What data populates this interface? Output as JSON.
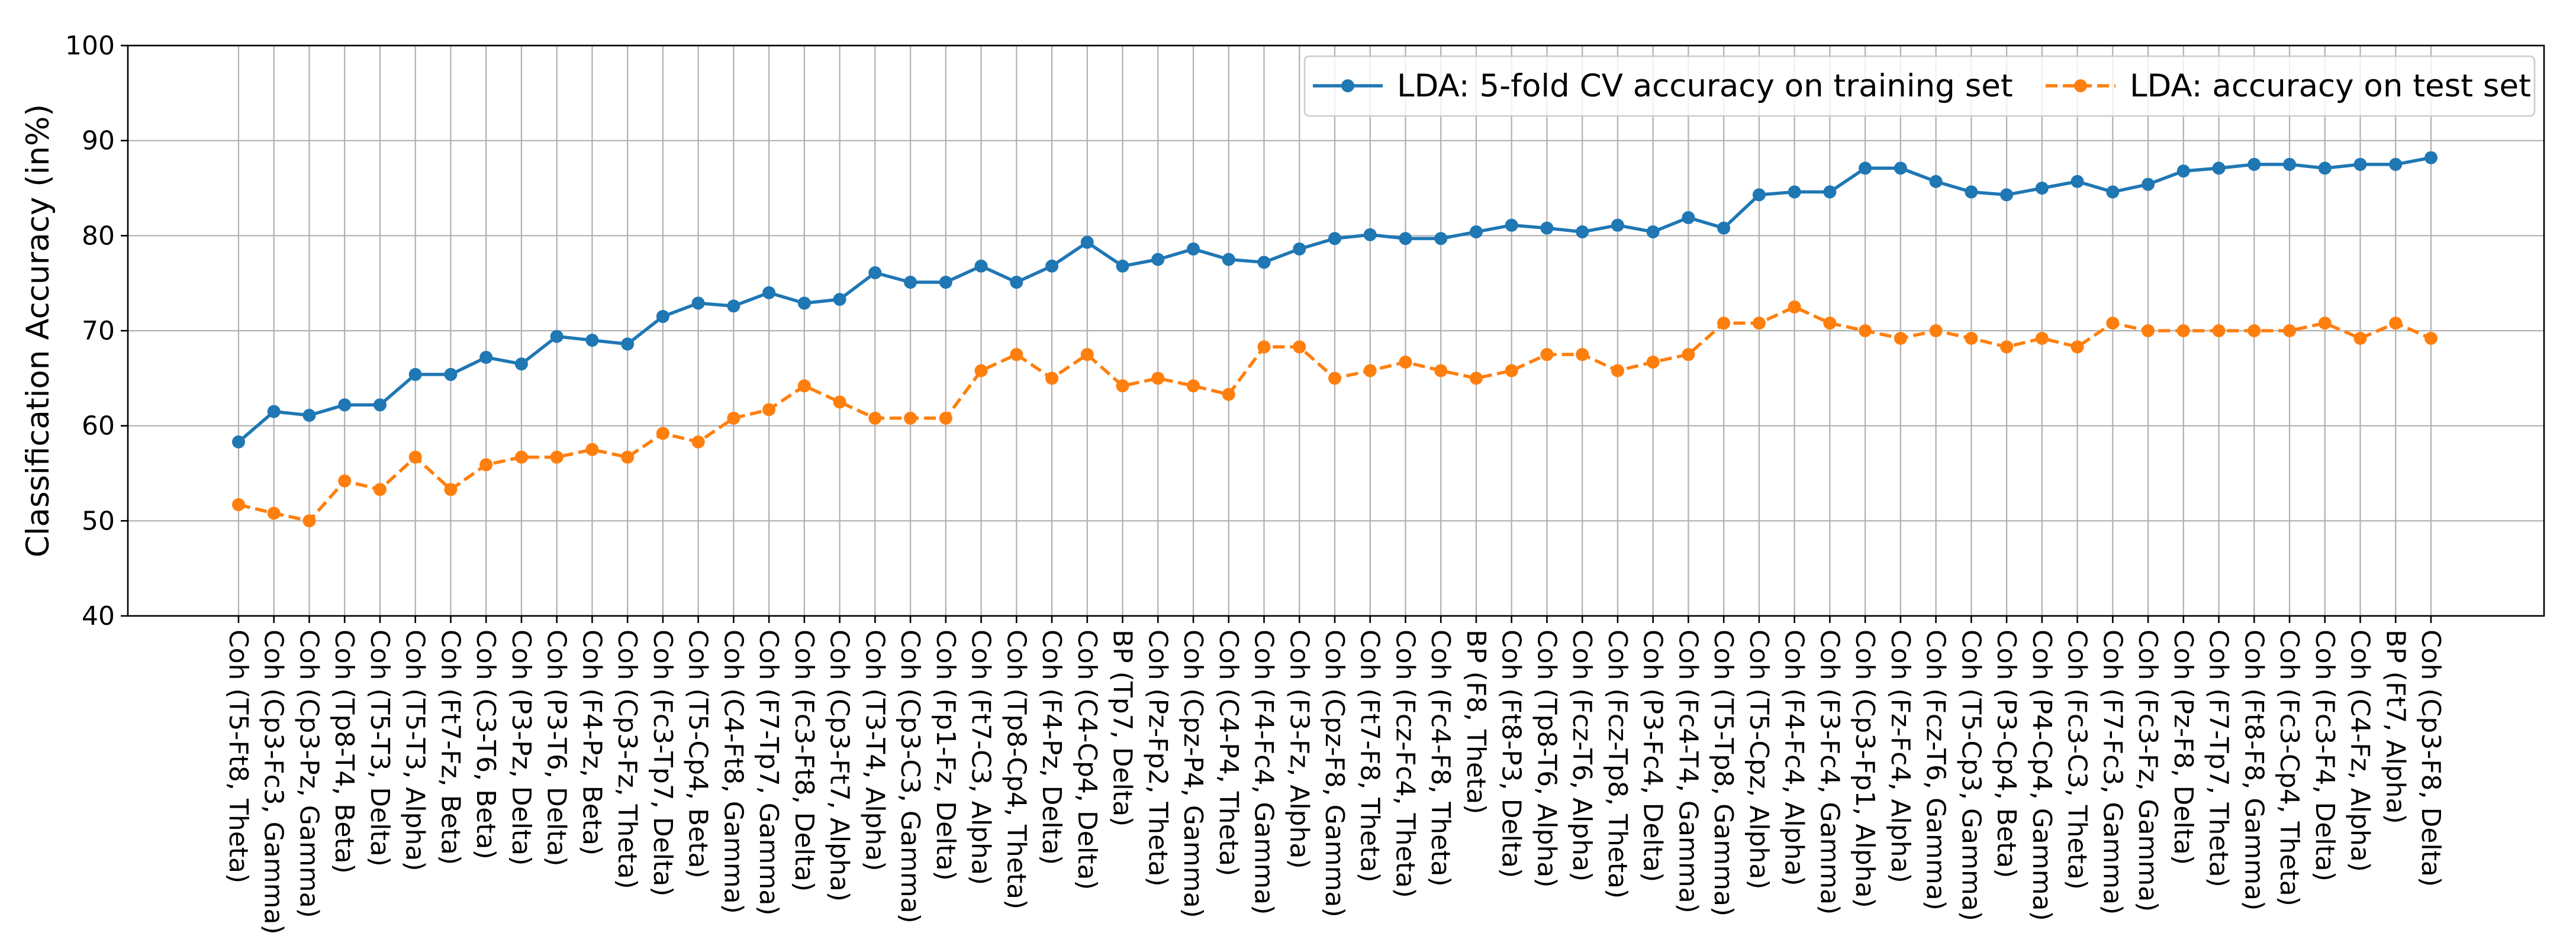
{
  "chart_data": {
    "type": "line",
    "ylabel": "Classification Accuracy (in%)",
    "xlabel": "",
    "ylim": [
      40,
      100
    ],
    "yticks": [
      40,
      50,
      60,
      70,
      80,
      90,
      100
    ],
    "grid": true,
    "legend_position": "top-right",
    "categories": [
      "Coh (T5-Ft8, Theta)",
      "Coh (Cp3-Fc3, Gamma)",
      "Coh (Cp3-Pz, Gamma)",
      "Coh (Tp8-T4, Beta)",
      "Coh (T5-T3, Delta)",
      "Coh (T5-T3, Alpha)",
      "Coh (Ft7-Fz, Beta)",
      "Coh (C3-T6, Beta)",
      "Coh (P3-Pz, Delta)",
      "Coh (P3-T6, Delta)",
      "Coh (F4-Pz, Beta)",
      "Coh (Cp3-Fz, Theta)",
      "Coh (Fc3-Tp7, Delta)",
      "Coh (T5-Cp4, Beta)",
      "Coh (C4-Ft8, Gamma)",
      "Coh (F7-Tp7, Gamma)",
      "Coh (Fc3-Ft8, Delta)",
      "Coh (Cp3-Ft7, Alpha)",
      "Coh (T3-T4, Alpha)",
      "Coh (Cp3-C3, Gamma)",
      "Coh (Fp1-Fz, Delta)",
      "Coh (Ft7-C3, Alpha)",
      "Coh (Tp8-Cp4, Theta)",
      "Coh (F4-Pz, Delta)",
      "Coh (C4-Cp4, Delta)",
      "BP (Tp7, Delta)",
      "Coh (Pz-Fp2, Theta)",
      "Coh (Cpz-P4, Gamma)",
      "Coh (C4-P4, Theta)",
      "Coh (F4-Fc4, Gamma)",
      "Coh (F3-Fz, Alpha)",
      "Coh (Cpz-F8, Gamma)",
      "Coh (Ft7-F8, Theta)",
      "Coh (Fcz-Fc4, Theta)",
      "Coh (Fc4-F8, Theta)",
      "BP (F8, Theta)",
      "Coh (Ft8-P3, Delta)",
      "Coh (Tp8-T6, Alpha)",
      "Coh (Fcz-T6, Alpha)",
      "Coh (Fcz-Tp8, Theta)",
      "Coh (P3-Fc4, Delta)",
      "Coh (Fc4-T4, Gamma)",
      "Coh (T5-Tp8, Gamma)",
      "Coh (T5-Cpz, Alpha)",
      "Coh (F4-Fc4, Alpha)",
      "Coh (F3-Fc4, Gamma)",
      "Coh (Cp3-Fp1, Alpha)",
      "Coh (Fz-Fc4, Alpha)",
      "Coh (Fcz-T6, Gamma)",
      "Coh (T5-Cp3, Gamma)",
      "Coh (P3-Cp4, Beta)",
      "Coh (P4-Cp4, Gamma)",
      "Coh (Fc3-C3, Theta)",
      "Coh (F7-Fc3, Gamma)",
      "Coh (Fc3-Fz, Gamma)",
      "Coh (Pz-F8, Delta)",
      "Coh (F7-Tp7, Theta)",
      "Coh (Ft8-F8, Gamma)",
      "Coh (Fc3-Cp4, Theta)",
      "Coh (Fc3-F4, Delta)",
      "Coh (C4-Fz, Alpha)",
      "BP (Ft7, Alpha)",
      "Coh (Cp3-F8, Delta)"
    ],
    "series": [
      {
        "name": "LDA: 5-fold CV accuracy on training set",
        "color": "#1f77b4",
        "linestyle": "solid",
        "marker": "circle",
        "values": [
          58.3,
          61.5,
          61.1,
          62.2,
          62.2,
          65.4,
          65.4,
          67.2,
          66.5,
          69.4,
          69.0,
          68.6,
          71.5,
          72.9,
          72.6,
          74.0,
          72.9,
          73.3,
          76.1,
          75.1,
          75.1,
          76.8,
          75.1,
          76.8,
          79.3,
          76.8,
          77.5,
          78.6,
          77.5,
          77.2,
          78.6,
          79.7,
          80.1,
          79.7,
          79.7,
          80.4,
          81.1,
          80.8,
          80.4,
          81.1,
          80.4,
          81.9,
          80.8,
          84.3,
          84.6,
          84.6,
          87.1,
          87.1,
          85.7,
          84.6,
          84.3,
          85.0,
          85.7,
          84.6,
          85.4,
          86.8,
          87.1,
          87.5,
          87.5,
          87.1,
          87.5,
          87.5,
          88.2
        ]
      },
      {
        "name": "LDA: accuracy on test set",
        "color": "#ff7f0e",
        "linestyle": "dashed",
        "marker": "circle",
        "values": [
          51.7,
          50.8,
          50.0,
          54.2,
          53.3,
          56.7,
          53.3,
          55.9,
          56.7,
          56.7,
          57.5,
          56.7,
          59.2,
          58.3,
          60.8,
          61.7,
          64.2,
          62.5,
          60.8,
          60.8,
          60.8,
          65.8,
          67.5,
          65.0,
          67.5,
          64.2,
          65.0,
          64.2,
          63.3,
          68.3,
          68.3,
          65.0,
          65.8,
          66.7,
          65.8,
          65.0,
          65.8,
          67.5,
          67.5,
          65.8,
          66.7,
          67.5,
          70.8,
          70.8,
          72.5,
          70.8,
          70.0,
          69.2,
          70.0,
          69.2,
          68.3,
          69.2,
          68.3,
          70.8,
          70.0,
          70.0,
          70.0,
          70.0,
          70.0,
          70.8,
          69.2,
          70.8,
          69.2
        ]
      }
    ]
  }
}
